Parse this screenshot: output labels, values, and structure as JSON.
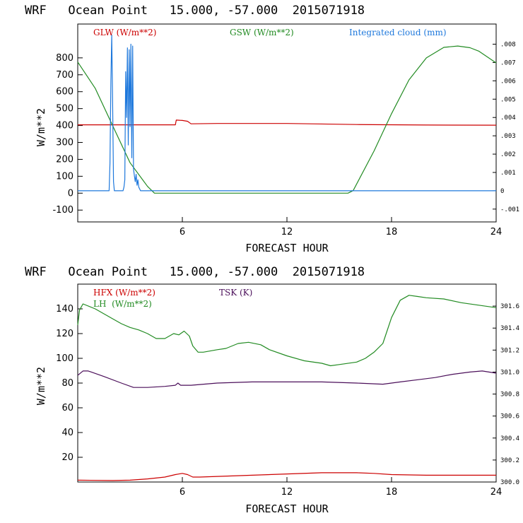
{
  "chart_data": [
    {
      "type": "line",
      "title": "WRF   Ocean Point   15.000, -57.000  2015071918",
      "xlabel": "FORECAST HOUR",
      "ylabel": "W/m**2",
      "xlim": [
        0,
        24
      ],
      "ylim": [
        -170,
        1000
      ],
      "xticks": [
        "6",
        "12",
        "18",
        "24"
      ],
      "yticks": [
        "-100",
        "0",
        "100",
        "200",
        "300",
        "400",
        "500",
        "600",
        "700",
        "800"
      ],
      "right_ylim": [
        -0.0017,
        0.0091
      ],
      "right_ticks": [
        "-.001",
        "0",
        ".001",
        ".002",
        ".003",
        ".004",
        ".005",
        ".006",
        ".007",
        ".008"
      ],
      "series": [
        {
          "name": "GLW (W/m**2)",
          "color": "#cc0000",
          "axis": "left",
          "x": [
            0,
            2,
            5.6,
            5.65,
            6.0,
            6.3,
            6.5,
            8,
            12,
            16,
            20,
            24
          ],
          "y": [
            404,
            404,
            404,
            432,
            430,
            425,
            410,
            412,
            412,
            406,
            403,
            402
          ]
        },
        {
          "name": "GSW (W/m**2)",
          "color": "#228b22",
          "axis": "left",
          "x": [
            0,
            1,
            2,
            3,
            4,
            4.4,
            15.5,
            15.8,
            17,
            18,
            19,
            20,
            21,
            21.8,
            22.5,
            23,
            24
          ],
          "y": [
            775,
            620,
            400,
            180,
            40,
            0,
            0,
            15,
            250,
            470,
            670,
            800,
            862,
            870,
            860,
            840,
            770
          ]
        },
        {
          "name": "Integrated cloud (mm)",
          "color": "#1e78dc",
          "axis": "right",
          "x": [
            0,
            1.8,
            1.85,
            1.9,
            1.95,
            2.0,
            2.05,
            2.1,
            2.15,
            2.2,
            2.6,
            2.65,
            2.7,
            2.75,
            2.8,
            2.85,
            2.9,
            2.95,
            3.0,
            3.05,
            3.1,
            3.15,
            3.2,
            3.25,
            3.3,
            3.35,
            3.4,
            3.45,
            3.5,
            3.55,
            3.6,
            3.65,
            24
          ],
          "y": [
            0,
            0,
            0.0015,
            0.006,
            0.0085,
            0.005,
            0.0005,
            0,
            0,
            0,
            0,
            0.0002,
            0.0006,
            0.0065,
            0.004,
            0.0078,
            0.0025,
            0.0077,
            0.0035,
            0.008,
            0.0018,
            0.0079,
            0.0012,
            0.0008,
            0.0005,
            0.0009,
            0.0003,
            0.0006,
            0.0002,
            0.0001,
            0,
            0,
            0
          ]
        }
      ]
    },
    {
      "type": "line",
      "title": "WRF   Ocean Point   15.000, -57.000  2015071918",
      "xlabel": "FORECAST HOUR",
      "ylabel": "W/m**2",
      "xlim": [
        0,
        24
      ],
      "ylim": [
        0,
        160
      ],
      "xticks": [
        "6",
        "12",
        "18",
        "24"
      ],
      "yticks": [
        "20",
        "40",
        "60",
        "80",
        "100",
        "120",
        "140"
      ],
      "right_ylim": [
        300.0,
        301.8
      ],
      "right_ticks": [
        "300.0",
        "300.2",
        "300.4",
        "300.6",
        "300.8",
        "301.0",
        "301.2",
        "301.4",
        "301.6"
      ],
      "series": [
        {
          "name": "HFX (W/m**2)",
          "color": "#cc0000",
          "axis": "left",
          "x": [
            0,
            2,
            3,
            4,
            5,
            5.6,
            6.0,
            6.3,
            6.6,
            7,
            8,
            10,
            12,
            14,
            16,
            17,
            18,
            20,
            22,
            24
          ],
          "y": [
            1.5,
            1.2,
            1.5,
            2.5,
            4,
            6,
            7,
            6,
            4,
            4,
            4.5,
            5.5,
            6.5,
            7.5,
            7.5,
            7,
            6,
            5.5,
            5.5,
            5.5
          ]
        },
        {
          "name": "LH  (W/m**2)",
          "color": "#228b22",
          "axis": "left",
          "x": [
            0,
            0.1,
            0.3,
            1,
            2,
            2.5,
            3,
            3.5,
            4,
            4.5,
            5,
            5.5,
            5.8,
            6.1,
            6.4,
            6.6,
            6.9,
            7.2,
            8,
            8.5,
            9.2,
            9.8,
            10.5,
            11,
            12,
            13,
            14,
            14.5,
            15,
            16,
            16.5,
            17,
            17.5,
            18,
            18.5,
            19,
            19.5,
            20,
            21,
            22,
            23,
            24
          ],
          "y": [
            127,
            139,
            144,
            140,
            132,
            128,
            125,
            123,
            120,
            116,
            116,
            120,
            119,
            122,
            118,
            110,
            105,
            105,
            107,
            108,
            112,
            113,
            111,
            107,
            102,
            98,
            96,
            94,
            95,
            97,
            100,
            105,
            112,
            133,
            147,
            151,
            150,
            149,
            148,
            145,
            143,
            141
          ]
        },
        {
          "name": "TSK (K)",
          "color": "#4b0f5a",
          "axis": "right",
          "x": [
            0,
            0.3,
            0.6,
            1.5,
            2.5,
            3.2,
            4,
            5,
            5.6,
            5.75,
            5.9,
            6.5,
            8,
            10,
            12,
            14,
            16,
            17.5,
            18.5,
            19.5,
            20.5,
            21.5,
            22.5,
            23.2,
            24
          ],
          "y": [
            300.97,
            301.01,
            301.01,
            300.96,
            300.9,
            300.86,
            300.86,
            300.87,
            300.88,
            300.9,
            300.88,
            300.88,
            300.9,
            300.91,
            300.91,
            300.91,
            300.9,
            300.89,
            300.91,
            300.93,
            300.95,
            300.98,
            301.0,
            301.01,
            300.99
          ]
        }
      ]
    }
  ]
}
